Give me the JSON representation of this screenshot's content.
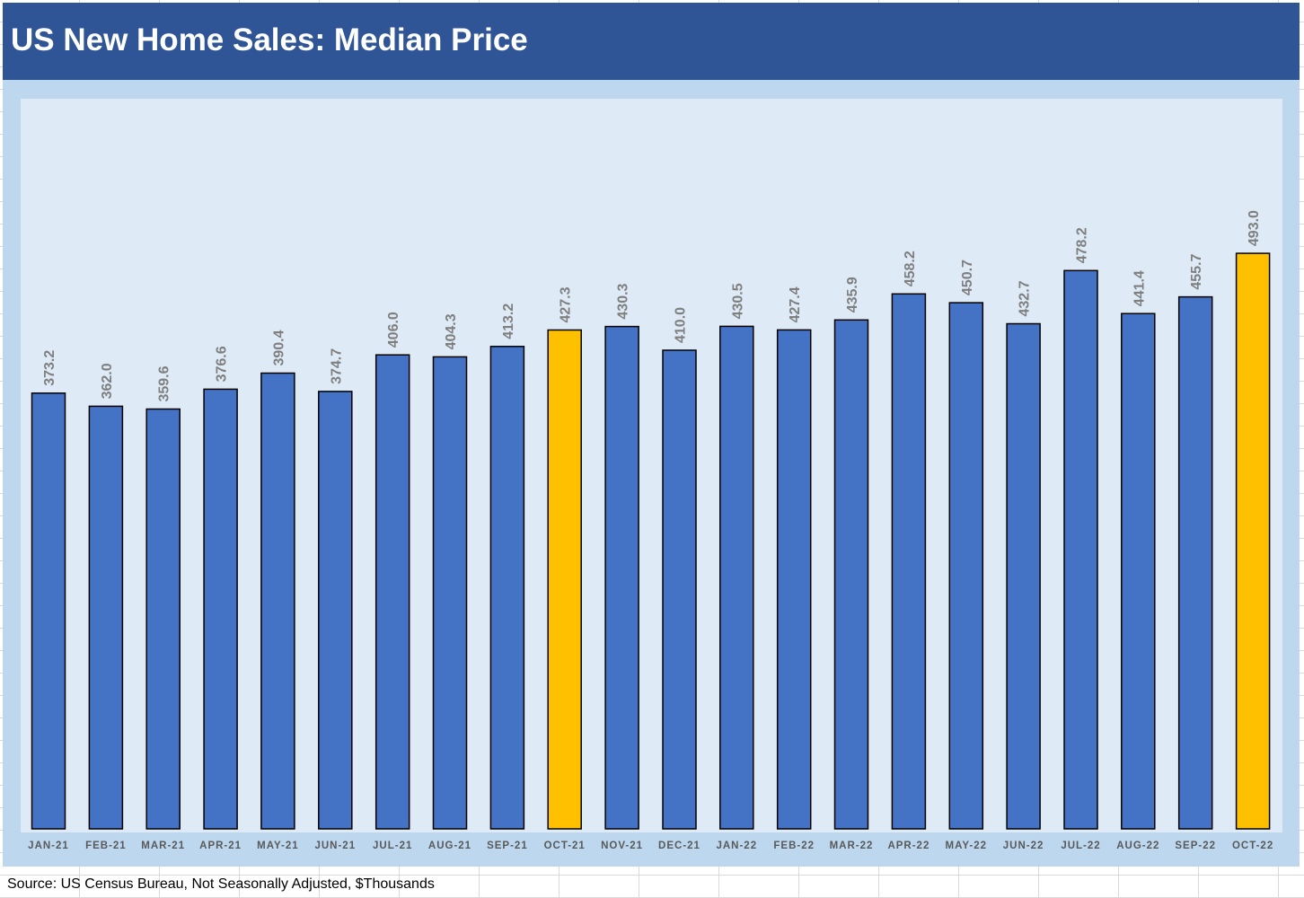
{
  "title": "US New Home Sales: Median Price",
  "source": "Source: US Census Bureau, Not Seasonally Adjusted, $Thousands",
  "colors": {
    "title_bar": "#2f5597",
    "frame": "#bdd7ee",
    "plot_bg": "#deebf7",
    "bar_default": "#4472c4",
    "bar_highlight": "#ffc000",
    "data_label": "#7f7f7f",
    "tick_label": "#595959"
  },
  "chart_data": {
    "type": "bar",
    "title": "US New Home Sales: Median Price",
    "xlabel": "",
    "ylabel": "",
    "categories": [
      "JAN-21",
      "FEB-21",
      "MAR-21",
      "APR-21",
      "MAY-21",
      "JUN-21",
      "JUL-21",
      "AUG-21",
      "SEP-21",
      "OCT-21",
      "NOV-21",
      "DEC-21",
      "JAN-22",
      "FEB-22",
      "MAR-22",
      "APR-22",
      "MAY-22",
      "JUN-22",
      "JUL-22",
      "AUG-22",
      "SEP-22",
      "OCT-22"
    ],
    "values": [
      373.2,
      362.0,
      359.6,
      376.6,
      390.4,
      374.7,
      406.0,
      404.3,
      413.2,
      427.3,
      430.3,
      410.0,
      430.5,
      427.4,
      435.9,
      458.2,
      450.7,
      432.7,
      478.2,
      441.4,
      455.7,
      493.0
    ],
    "data_labels": [
      "373.2",
      "362.0",
      "359.6",
      "376.6",
      "390.4",
      "374.7",
      "406.0",
      "404.3",
      "413.2",
      "427.3",
      "430.3",
      "410.0",
      "430.5",
      "427.4",
      "435.9",
      "458.2",
      "450.7",
      "432.7",
      "478.2",
      "441.4",
      "455.7",
      "493.0"
    ],
    "highlighted": [
      "OCT-21",
      "OCT-22"
    ],
    "ylim": [
      0,
      545
    ],
    "grid": false,
    "legend": "none"
  }
}
